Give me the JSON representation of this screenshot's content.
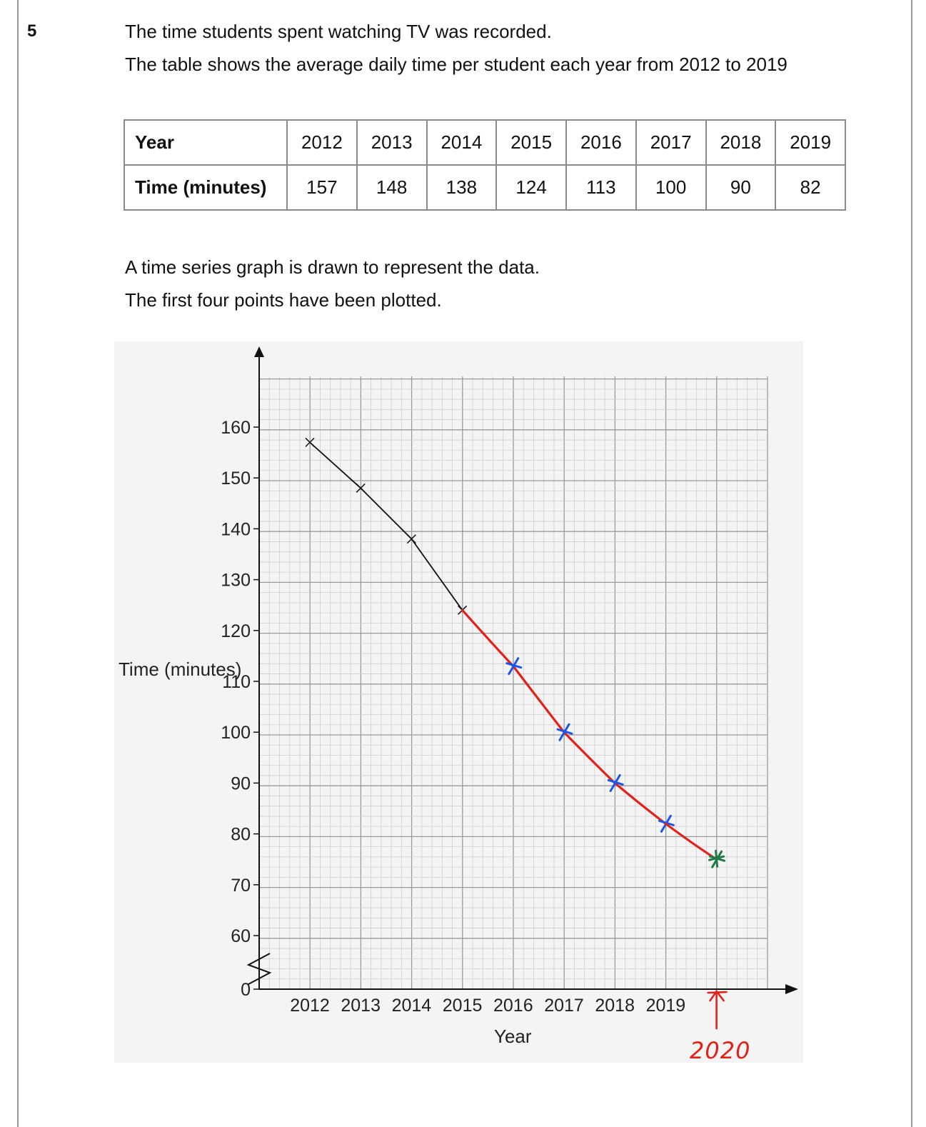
{
  "question": {
    "number": "5",
    "line1": "The time students spent watching TV was recorded.",
    "line2": "The table shows the average daily time per student each year from 2012 to 2019",
    "line3": "A time series graph is drawn to represent the data.",
    "line4": "The first four points have been plotted."
  },
  "table": {
    "row1_header": "Year",
    "row2_header": "Time (minutes)",
    "years": [
      "2012",
      "2013",
      "2014",
      "2015",
      "2016",
      "2017",
      "2018",
      "2019"
    ],
    "times": [
      "157",
      "148",
      "138",
      "124",
      "113",
      "100",
      "90",
      "82"
    ]
  },
  "chart_data": {
    "type": "line",
    "xlabel": "Year",
    "ylabel": "Time (minutes)",
    "x": [
      2012,
      2013,
      2014,
      2015,
      2016,
      2017,
      2018,
      2019
    ],
    "x_tick_labels": [
      "2012",
      "2013",
      "2014",
      "2015",
      "2016",
      "2017",
      "2018",
      "2019"
    ],
    "y_ticks": [
      0,
      60,
      70,
      80,
      90,
      100,
      110,
      120,
      130,
      140,
      150,
      160
    ],
    "y_tick_labels": [
      "0",
      "60",
      "70",
      "80",
      "90",
      "100",
      "110",
      "120",
      "130",
      "140",
      "150",
      "160"
    ],
    "ylim_broken": [
      0,
      55
    ],
    "ylim": [
      55,
      170
    ],
    "xlim": [
      2011,
      2021
    ],
    "grid": true,
    "series": [
      {
        "style": "printed",
        "color": "#111111",
        "points": [
          [
            2012,
            157
          ],
          [
            2013,
            148
          ],
          [
            2014,
            138
          ],
          [
            2015,
            124
          ]
        ]
      },
      {
        "style": "handwritten",
        "color": "#e0221b",
        "marker_color": "#1a56e8",
        "points": [
          [
            2015,
            124
          ],
          [
            2016,
            113
          ],
          [
            2017,
            100
          ],
          [
            2018,
            90
          ],
          [
            2019,
            82
          ]
        ]
      },
      {
        "style": "handwritten-extension",
        "color": "#e0221b",
        "marker_color": "#1f7a45",
        "points": [
          [
            2019,
            82
          ],
          [
            2020,
            75
          ]
        ]
      }
    ],
    "annotation": {
      "text": "2020",
      "color": "#e0221b",
      "points_to": 2020
    }
  }
}
